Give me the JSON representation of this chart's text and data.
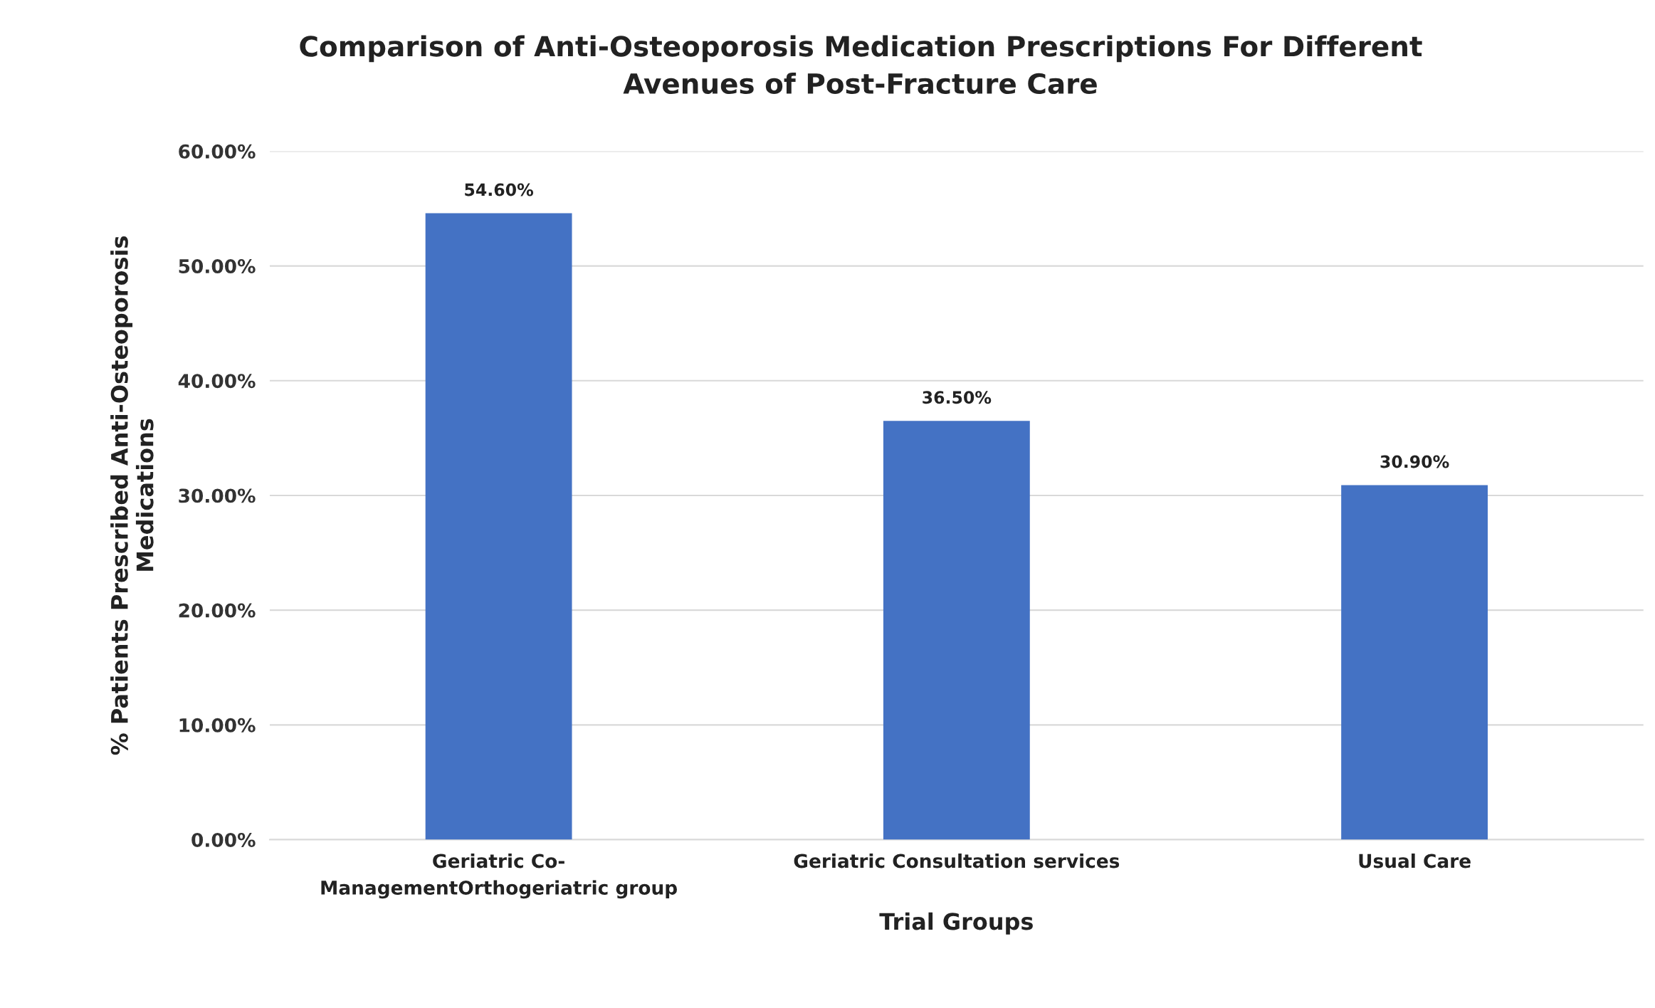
{
  "chart_data": {
    "type": "bar",
    "title": "Comparison of Anti-Osteoporosis Medication Prescriptions For Different\nAvenues of Post-Fracture Care",
    "xlabel": "Trial Groups",
    "ylabel": "% Patients Prescribed Anti-Osteoporosis\nMedications",
    "categories": [
      "Geriatric Co-\nManagementOrthogeriatric group",
      "Geriatric Consultation services",
      "Usual Care"
    ],
    "values": [
      54.6,
      36.5,
      30.9
    ],
    "value_labels": [
      "54.60%",
      "36.50%",
      "30.90%"
    ],
    "color": "#4472c4",
    "ylim": [
      0,
      60
    ],
    "yticks": [
      {
        "value": 0,
        "label": "0.00%"
      },
      {
        "value": 10,
        "label": "10.00%"
      },
      {
        "value": 20,
        "label": "20.00%"
      },
      {
        "value": 30,
        "label": "30.00%"
      },
      {
        "value": 40,
        "label": "40.00%"
      },
      {
        "value": 50,
        "label": "50.00%"
      },
      {
        "value": 60,
        "label": "60.00%"
      }
    ],
    "grid": "y",
    "legend": false
  }
}
